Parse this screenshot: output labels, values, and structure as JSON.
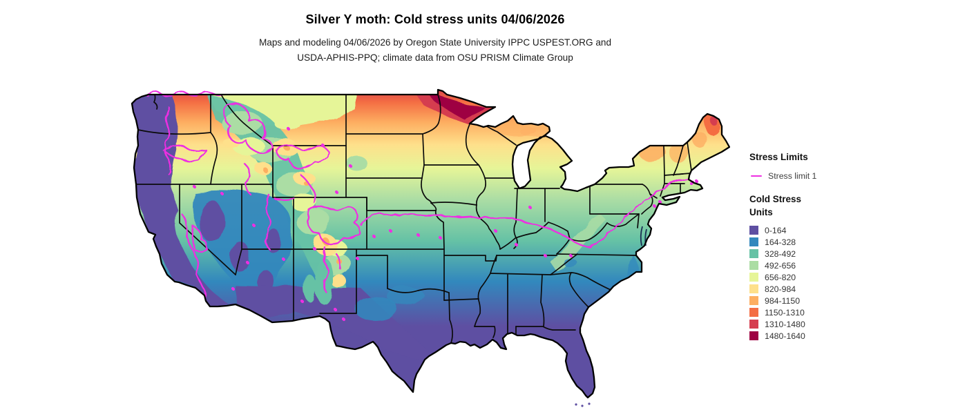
{
  "title": "Silver Y moth: Cold stress units 04/06/2026",
  "subtitle_line1": "Maps and modeling 04/06/2026 by Oregon State University IPPC USPEST.ORG and",
  "subtitle_line2": "USDA-APHIS-PPQ; climate data from OSU PRISM Climate Group",
  "map": {
    "region": "Continental United States",
    "border_color": "#0b0b0b",
    "outline_color": "#000000",
    "water_color": "#ffffff",
    "chesapeake_color": "#1b2f52"
  },
  "legend": {
    "stress_limits_title": "Stress Limits",
    "stress_limit_label": "Stress limit 1",
    "stress_limit_color": "#ee2fe2",
    "units_title_line1": "Cold Stress",
    "units_title_line2": "Units",
    "classes": [
      {
        "label": "0-164",
        "color": "#5e4fa2"
      },
      {
        "label": "164-328",
        "color": "#3288bd"
      },
      {
        "label": "328-492",
        "color": "#66c2a5"
      },
      {
        "label": "492-656",
        "color": "#abdda4"
      },
      {
        "label": "656-820",
        "color": "#e6f598"
      },
      {
        "label": "820-984",
        "color": "#fee08b"
      },
      {
        "label": "984-1150",
        "color": "#fdae61"
      },
      {
        "label": "1150-1310",
        "color": "#f46d43"
      },
      {
        "label": "1310-1480",
        "color": "#d53e4f"
      },
      {
        "label": "1480-1640",
        "color": "#9e0142"
      }
    ]
  }
}
